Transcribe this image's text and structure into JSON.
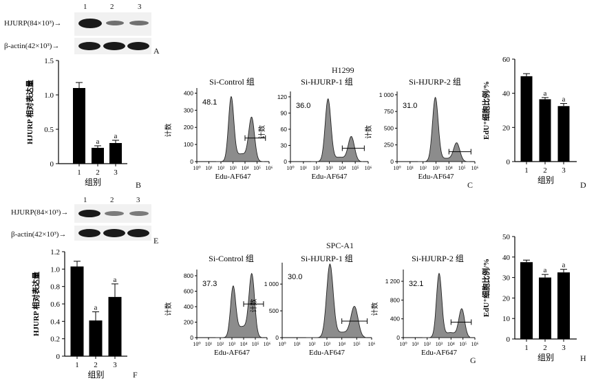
{
  "panel_letters": [
    "A",
    "B",
    "C",
    "D",
    "E",
    "F",
    "G",
    "H"
  ],
  "western_blots": [
    {
      "lanes": [
        "1",
        "2",
        "3"
      ],
      "rows": [
        "HJURP(84×10³)→",
        "β-actin(42×10³)→"
      ]
    },
    {
      "lanes": [
        "1",
        "2",
        "3"
      ],
      "rows": [
        "HJURP(84×10³)→",
        "β-actin(42×10³)→"
      ]
    }
  ],
  "sections": [
    "H1299",
    "SPC-A1"
  ],
  "chart_data": [
    {
      "type": "bar",
      "ylabel": "HJURP 相对表达量",
      "xlabel": "组别",
      "categories": [
        "1",
        "2",
        "3"
      ],
      "values": [
        1.1,
        0.23,
        0.3
      ],
      "errors": [
        0.08,
        0.03,
        0.04
      ],
      "annotations": [
        "",
        "a",
        "a"
      ],
      "ylim": [
        0,
        1.5
      ],
      "yticks": [
        "0",
        "0.5",
        "1.0",
        "1.5"
      ]
    },
    {
      "type": "area",
      "title": "Si-Control 组",
      "xlabel": "Edu-AF647",
      "ylabel": "计数",
      "gate_value": "48.1",
      "yticks": [
        "0",
        "100",
        "200",
        "300",
        "400"
      ],
      "ymax": 430,
      "xticks": [
        "10⁰",
        "10¹",
        "10²",
        "10³",
        "10⁴",
        "10⁵",
        "10⁶"
      ],
      "peaks": [
        {
          "log_x": 2.85,
          "height": 370
        },
        {
          "log_x": 4.55,
          "height": 250
        }
      ]
    },
    {
      "type": "area",
      "title": "Si-HJURP-1 组",
      "xlabel": "Edu-AF647",
      "ylabel": "计数",
      "gate_value": "36.0",
      "yticks": [
        "0",
        "30",
        "60",
        "90",
        "120"
      ],
      "ymax": 130,
      "xticks": [
        "10⁰",
        "10¹",
        "10²",
        "10³",
        "10⁴",
        "10⁵",
        "10⁶"
      ],
      "peaks": [
        {
          "log_x": 2.9,
          "height": 115
        },
        {
          "log_x": 4.7,
          "height": 45
        }
      ]
    },
    {
      "type": "area",
      "title": "Si-HJURP-2 组",
      "xlabel": "Edu-AF647",
      "ylabel": "计数",
      "gate_value": "31.0",
      "yticks": [
        "0",
        "250",
        "500",
        "750",
        "1 000"
      ],
      "ymax": 1050,
      "xticks": [
        "10⁰",
        "10¹",
        "10²",
        "10³",
        "10⁴",
        "10⁵",
        "10⁶"
      ],
      "peaks": [
        {
          "log_x": 2.95,
          "height": 950
        },
        {
          "log_x": 4.6,
          "height": 270
        }
      ]
    },
    {
      "type": "bar",
      "ylabel": "EdU⁺细胞比例/%",
      "xlabel": "组别",
      "categories": [
        "1",
        "2",
        "3"
      ],
      "values": [
        50,
        36.5,
        32.5
      ],
      "errors": [
        1.5,
        1.0,
        1.5
      ],
      "annotations": [
        "",
        "a",
        "a"
      ],
      "ylim": [
        0,
        60
      ],
      "yticks": [
        "0",
        "20",
        "40",
        "60"
      ]
    },
    {
      "type": "bar",
      "ylabel": "HJURP 相对表达量",
      "xlabel": "组别",
      "categories": [
        "1",
        "2",
        "3"
      ],
      "values": [
        1.03,
        0.41,
        0.68
      ],
      "errors": [
        0.06,
        0.1,
        0.15
      ],
      "annotations": [
        "",
        "a",
        "a"
      ],
      "ylim": [
        0,
        1.2
      ],
      "yticks": [
        "0",
        "0.2",
        "0.4",
        "0.6",
        "0.8",
        "1.0",
        "1.2"
      ]
    },
    {
      "type": "area",
      "title": "Si-Control 组",
      "xlabel": "Edu-AF647",
      "ylabel": "计数",
      "gate_value": "37.3",
      "yticks": [
        "0",
        "200",
        "400",
        "600",
        "800"
      ],
      "ymax": 880,
      "xticks": [
        "10⁰",
        "10¹",
        "10²",
        "10³",
        "10⁴",
        "10⁵",
        "10⁶"
      ],
      "peaks": [
        {
          "log_x": 3.1,
          "height": 630
        },
        {
          "log_x": 4.7,
          "height": 790
        }
      ]
    },
    {
      "type": "area",
      "title": "Si-HJURP-1 组",
      "xlabel": "Edu-AF647",
      "ylabel": "计数",
      "gate_value": "30.0",
      "yticks": [
        "0",
        "500",
        "1 000"
      ],
      "ymax": 1400,
      "xticks": [
        "10⁰",
        "10¹",
        "10²",
        "10³",
        "10⁴",
        "10⁵",
        "10⁶"
      ],
      "peaks": [
        {
          "log_x": 3.2,
          "height": 1350
        },
        {
          "log_x": 4.85,
          "height": 560
        }
      ]
    },
    {
      "type": "area",
      "title": "Si-HJURP-2 组",
      "xlabel": "Edu-AF647",
      "ylabel": "计数",
      "gate_value": "32.1",
      "yticks": [
        "0",
        "400",
        "800",
        "1 200"
      ],
      "ymax": 1450,
      "xticks": [
        "10⁰",
        "10¹",
        "10²",
        "10³",
        "10⁴",
        "10⁵",
        "10⁶"
      ],
      "peaks": [
        {
          "log_x": 3.0,
          "height": 1350
        },
        {
          "log_x": 4.9,
          "height": 600
        }
      ]
    },
    {
      "type": "bar",
      "ylabel": "EdU⁺细胞比例/%",
      "xlabel": "组别",
      "categories": [
        "1",
        "2",
        "3"
      ],
      "values": [
        37.5,
        30,
        32.5
      ],
      "errors": [
        1.0,
        1.5,
        1.5
      ],
      "annotations": [
        "",
        "a",
        "a"
      ],
      "ylim": [
        0,
        50
      ],
      "yticks": [
        "0",
        "10",
        "20",
        "30",
        "40",
        "50"
      ]
    }
  ]
}
